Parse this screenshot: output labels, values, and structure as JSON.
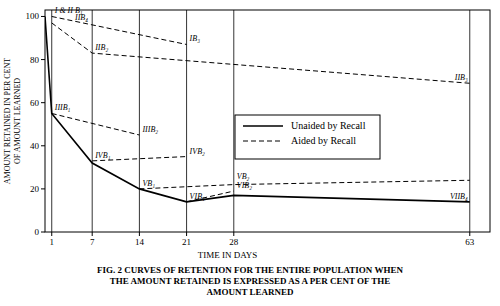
{
  "chart_data": {
    "type": "line",
    "title": [
      "FIG. 2   CURVES OF RETENTION FOR THE ENTIRE POPULATION WHEN",
      "THE AMOUNT RETAINED IS EXPRESSED AS A PER CENT OF THE",
      "AMOUNT LEARNED"
    ],
    "xlabel": "TIME IN DAYS",
    "ylabel": [
      "AMOUNT RETAINED IN PER CENT",
      "OF AMOUNT LEARNED"
    ],
    "xlim": [
      0,
      66
    ],
    "xticks": [
      1,
      7,
      14,
      21,
      28,
      63
    ],
    "ylim": [
      0,
      103
    ],
    "yticks": [
      0,
      20,
      40,
      60,
      80,
      100
    ],
    "grid": true,
    "legend": "right",
    "series": [
      {
        "name": "Unaided by Recall",
        "color": "#000000",
        "line_style": "solid",
        "x": [
          0,
          1,
          7,
          14,
          21,
          28,
          63
        ],
        "values": [
          100,
          55,
          32,
          20,
          14,
          17,
          14
        ]
      },
      {
        "name": "Aided by Recall",
        "color": "#000000",
        "line_style": "dashed",
        "x": [
          1,
          21
        ],
        "values": [
          100,
          87
        ]
      },
      {
        "name": "Aided by Recall",
        "color": "#000000",
        "line_style": "dashed",
        "x": [
          1,
          7,
          63
        ],
        "values": [
          97,
          83,
          69
        ]
      },
      {
        "name": "Aided by Recall",
        "color": "#000000",
        "line_style": "dashed",
        "x": [
          1,
          14
        ],
        "values": [
          55,
          45
        ]
      },
      {
        "name": "Aided by Recall",
        "color": "#000000",
        "line_style": "dashed",
        "x": [
          7,
          21
        ],
        "values": [
          33,
          35
        ]
      },
      {
        "name": "Aided by Recall",
        "color": "#000000",
        "line_style": "dashed",
        "x": [
          14,
          28,
          63
        ],
        "values": [
          20,
          22,
          24
        ]
      },
      {
        "name": "Aided by Recall",
        "color": "#000000",
        "line_style": "dashed",
        "x": [
          21,
          28
        ],
        "values": [
          14,
          19
        ]
      }
    ],
    "annotations": [
      {
        "text": "I & II B₁",
        "x": 1,
        "y": 100
      },
      {
        "text": "IIB₄",
        "x": 4,
        "y": 97
      },
      {
        "text": "IB₃",
        "x": 21,
        "y": 87
      },
      {
        "text": "IIB₂",
        "x": 7,
        "y": 83
      },
      {
        "text": "IIB₃",
        "x": 63,
        "y": 69
      },
      {
        "text": "IIIB₁",
        "x": 1,
        "y": 55
      },
      {
        "text": "IIIB₂",
        "x": 14,
        "y": 45
      },
      {
        "text": "IVB₁",
        "x": 7,
        "y": 33
      },
      {
        "text": "IVB₂",
        "x": 21,
        "y": 35
      },
      {
        "text": "VB₁",
        "x": 14,
        "y": 20
      },
      {
        "text": "VB₂",
        "x": 28,
        "y": 23
      },
      {
        "text": "VIB₁",
        "x": 21,
        "y": 14
      },
      {
        "text": "VIB₂",
        "x": 28,
        "y": 19
      },
      {
        "text": "VIIB₄",
        "x": 63,
        "y": 14
      }
    ]
  }
}
